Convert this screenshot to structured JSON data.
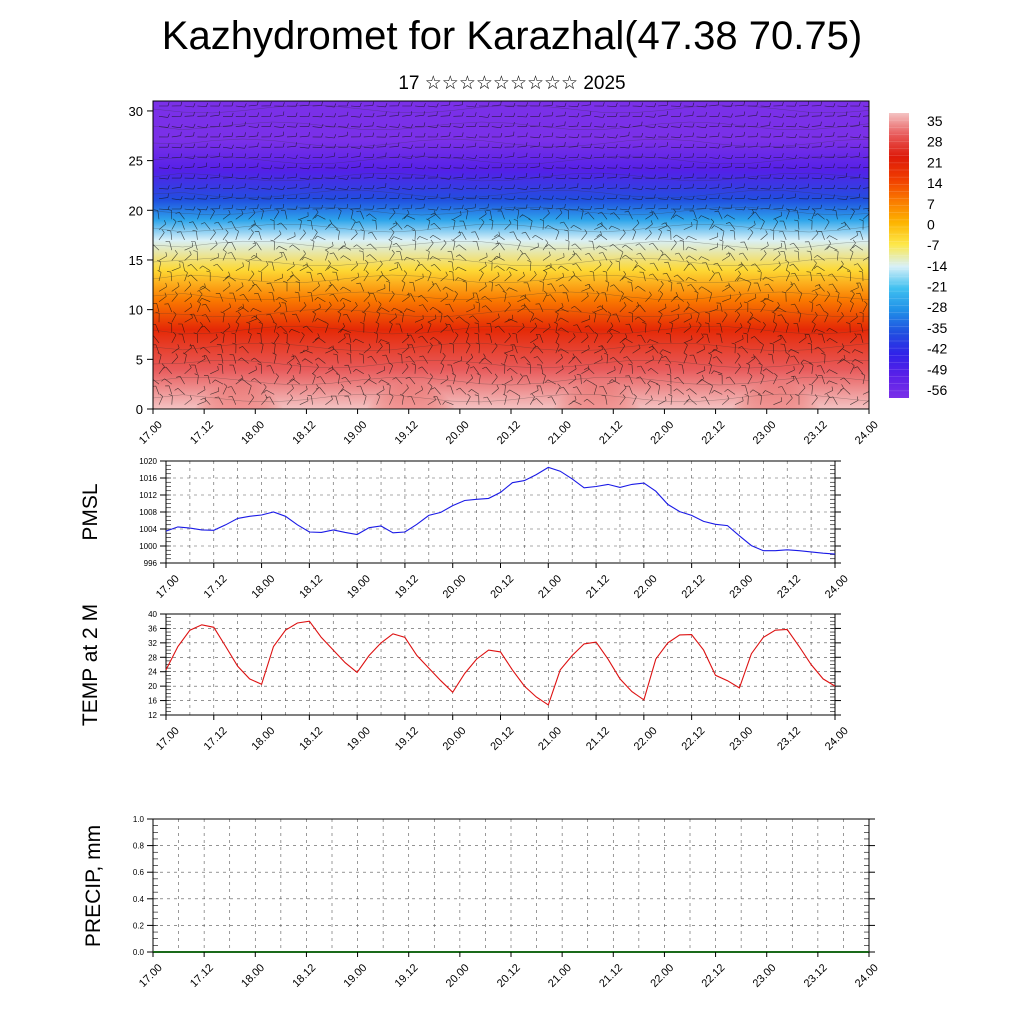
{
  "title": "Kazhydromet for Karazhal(47.38 70.75)",
  "subtitle": "17 ☆☆☆☆☆☆☆☆☆ 2025",
  "x_ticks": [
    "17.00",
    "17.12",
    "18.00",
    "18.12",
    "19.00",
    "19.12",
    "20.00",
    "20.12",
    "21.00",
    "21.12",
    "22.00",
    "22.12",
    "23.00",
    "23.12",
    "24.00"
  ],
  "chart_data": [
    {
      "type": "heatmap",
      "name_hint": "vertical cross-section",
      "ylim": [
        0,
        31
      ],
      "y_ticks": [
        "0",
        "5",
        "10",
        "15",
        "20",
        "25",
        "30"
      ],
      "colorbar": {
        "labels": [
          "35",
          "28",
          "21",
          "14",
          "7",
          "0",
          "-7",
          "-14",
          "-21",
          "-28",
          "-35",
          "-42",
          "-49",
          "-56"
        ],
        "colors": [
          "#f4c4c4",
          "#e85a5a",
          "#dd1a0a",
          "#f03c00",
          "#fa7a00",
          "#fdb400",
          "#fde84a",
          "#d8f0f8",
          "#40c0f0",
          "#2090e8",
          "#2050e0",
          "#3022e8",
          "#5a20e8",
          "#7a30e8"
        ]
      },
      "profile": [
        {
          "level": 0,
          "value": 35
        },
        {
          "level": 4,
          "value": 28
        },
        {
          "level": 8,
          "value": 18
        },
        {
          "level": 11,
          "value": 7
        },
        {
          "level": 14,
          "value": -5
        },
        {
          "level": 17,
          "value": -14
        },
        {
          "level": 19,
          "value": -25
        },
        {
          "level": 21,
          "value": -35
        },
        {
          "level": 24,
          "value": -48
        },
        {
          "level": 27,
          "value": -56
        },
        {
          "level": 31,
          "value": -60
        }
      ]
    },
    {
      "type": "line",
      "ylabel": "PMSL",
      "ylim": [
        996,
        1020
      ],
      "y_ticks": [
        "996",
        "1000",
        "1004",
        "1008",
        "1012",
        "1016",
        "1020"
      ],
      "color": "#1a1ae6",
      "x": [
        0,
        3,
        6,
        9,
        12,
        15,
        18,
        21,
        24,
        27,
        30,
        33,
        36,
        39,
        42,
        45,
        48,
        51,
        54,
        57,
        60,
        63,
        66,
        69,
        72,
        75,
        78,
        81,
        84,
        87,
        90,
        93,
        96,
        99,
        102,
        105,
        108,
        111,
        114,
        117,
        120,
        123,
        126,
        129,
        132,
        135,
        138,
        141,
        144,
        147,
        150,
        153,
        156,
        159,
        162,
        165,
        168
      ],
      "values": [
        1003.5,
        1004.5,
        1004.2,
        1003.8,
        1003.7,
        1005.0,
        1006.5,
        1007.0,
        1007.3,
        1008.0,
        1007.0,
        1005.0,
        1003.3,
        1003.2,
        1003.8,
        1003.2,
        1002.7,
        1004.3,
        1004.7,
        1003.1,
        1003.3,
        1005.1,
        1007.2,
        1007.9,
        1009.5,
        1010.7,
        1011.0,
        1011.2,
        1012.6,
        1014.9,
        1015.4,
        1016.8,
        1018.5,
        1017.6,
        1015.8,
        1013.7,
        1014.0,
        1014.5,
        1013.8,
        1014.5,
        1014.8,
        1012.9,
        1009.8,
        1008.1,
        1007.2,
        1005.8,
        1005.1,
        1004.8,
        1002.4,
        1000.1,
        998.9,
        998.9,
        999.1,
        998.9,
        998.6,
        998.3,
        998.1
      ]
    },
    {
      "type": "line",
      "ylabel": "TEMP at 2 M",
      "ylim": [
        12,
        40
      ],
      "y_ticks": [
        "12",
        "16",
        "20",
        "24",
        "28",
        "32",
        "36",
        "40"
      ],
      "color": "#dd1111",
      "x": [
        0,
        3,
        6,
        9,
        12,
        15,
        18,
        21,
        24,
        27,
        30,
        33,
        36,
        39,
        42,
        45,
        48,
        51,
        54,
        57,
        60,
        63,
        66,
        69,
        72,
        75,
        78,
        81,
        84,
        87,
        90,
        93,
        96,
        99,
        102,
        105,
        108,
        111,
        114,
        117,
        120,
        123,
        126,
        129,
        132,
        135,
        138,
        141,
        144,
        147,
        150,
        153,
        156,
        159,
        162,
        165,
        168
      ],
      "values": [
        24.5,
        31.0,
        35.5,
        37.0,
        36.3,
        31.0,
        25.5,
        22.0,
        20.5,
        31.0,
        35.5,
        37.5,
        38.0,
        33.5,
        30.0,
        26.5,
        23.8,
        28.5,
        32.0,
        34.5,
        33.5,
        28.5,
        25.0,
        21.5,
        18.3,
        23.5,
        27.5,
        30.0,
        29.5,
        24.5,
        20.0,
        17.0,
        14.8,
        24.5,
        28.5,
        31.7,
        32.2,
        27.5,
        22.0,
        18.5,
        16.2,
        27.5,
        32.0,
        34.2,
        34.3,
        30.0,
        23.0,
        21.5,
        19.5,
        29.0,
        33.5,
        35.5,
        35.7,
        31.0,
        26.0,
        22.0,
        20.0
      ]
    },
    {
      "type": "bar",
      "ylabel": "PRECIP, mm",
      "ylim": [
        0,
        1
      ],
      "y_ticks": [
        "0.0",
        "0.2",
        "0.4",
        "0.6",
        "0.8",
        "1.0"
      ],
      "values": []
    }
  ]
}
